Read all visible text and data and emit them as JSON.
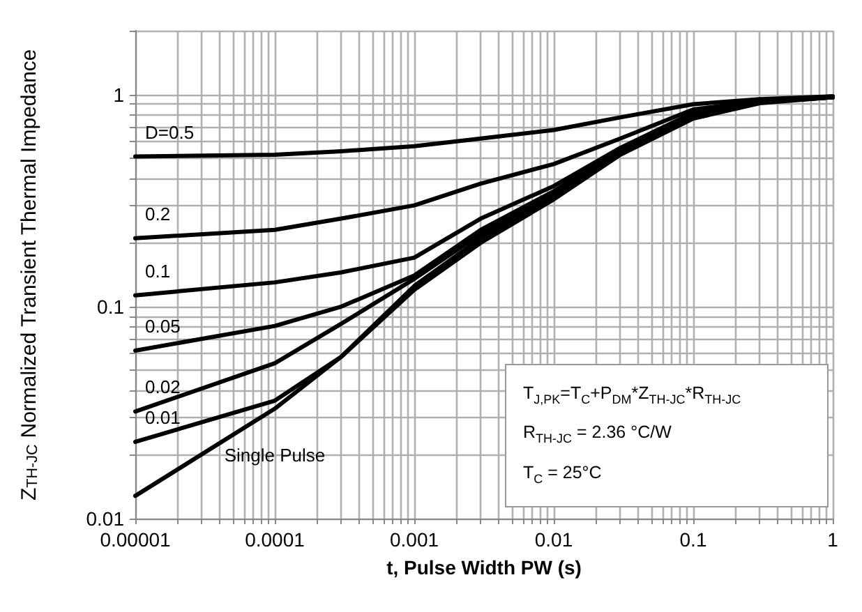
{
  "chart_data": {
    "type": "line",
    "xlabel": "t, Pulse Width PW (s)",
    "ylabel": "Z$_{TH-JC}$ Normalized Transient Thermal Impedance",
    "annotations": [
      "T$_{J,PK}$=T$_{C}$+P$_{DM}$*Z$_{TH-JC}$*R$_{TH-JC}$",
      "R$_{TH-JC}$ = 2.36 °C/W",
      "T$_{C}$ = 25°C"
    ],
    "x": [
      1e-05,
      0.0001,
      0.0003,
      0.001,
      0.003,
      0.01,
      0.03,
      0.1,
      0.3,
      1
    ],
    "series": [
      {
        "name": "D=0.5",
        "color": "#000000",
        "values": [
          0.51,
          0.52,
          0.54,
          0.57,
          0.62,
          0.68,
          0.78,
          0.9,
          0.95,
          0.98
        ]
      },
      {
        "name": "0.2",
        "color": "#000000",
        "values": [
          0.21,
          0.23,
          0.26,
          0.3,
          0.38,
          0.47,
          0.62,
          0.85,
          0.93,
          0.98
        ]
      },
      {
        "name": "0.1",
        "color": "#000000",
        "values": [
          0.113,
          0.13,
          0.145,
          0.17,
          0.26,
          0.37,
          0.56,
          0.82,
          0.93,
          0.97
        ]
      },
      {
        "name": "0.05",
        "color": "#000000",
        "values": [
          0.062,
          0.081,
          0.1,
          0.14,
          0.23,
          0.35,
          0.55,
          0.8,
          0.92,
          0.97
        ]
      },
      {
        "name": "0.02",
        "color": "#000000",
        "values": [
          0.032,
          0.054,
          0.083,
          0.135,
          0.22,
          0.34,
          0.54,
          0.79,
          0.92,
          0.97
        ]
      },
      {
        "name": "0.01",
        "color": "#000000",
        "values": [
          0.023,
          0.036,
          0.058,
          0.125,
          0.21,
          0.33,
          0.53,
          0.78,
          0.92,
          0.97
        ]
      },
      {
        "name": "Single Pulse",
        "color": "#000000",
        "values": [
          0.0128,
          0.033,
          0.058,
          0.12,
          0.2,
          0.32,
          0.52,
          0.77,
          0.91,
          0.97
        ]
      }
    ],
    "xlim": [
      1e-05,
      1
    ],
    "xticks": [
      {
        "value": 1e-05,
        "label": "0.00001"
      },
      0.0001,
      0.001,
      0.01,
      0.1,
      1
    ],
    "ylim": [
      0.01,
      2
    ],
    "yticks": [
      0.01,
      0.1,
      1
    ],
    "log": "xy",
    "grid": true,
    "legend": false,
    "marker": "none",
    "line_style": "solid"
  }
}
